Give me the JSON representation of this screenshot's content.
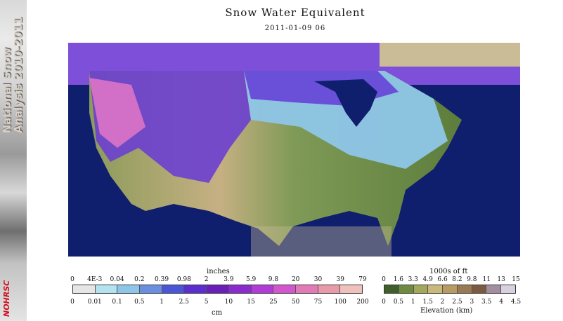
{
  "banner": {
    "text": "National Snow Analysis 2010-2011",
    "brand": "NOHRSC"
  },
  "header": {
    "title": "Snow Water Equivalent",
    "datetime": "2011-01-09 06"
  },
  "swe_legend": {
    "top_unit": "inches",
    "bottom_unit": "cm",
    "inches_labels": [
      "0",
      "4E-3",
      "0.04",
      "0.2",
      "0.39",
      "0.98",
      "2",
      "3.9",
      "5.9",
      "9.8",
      "20",
      "30",
      "39",
      "79"
    ],
    "cm_labels": [
      "0",
      "0.01",
      "0.1",
      "0.5",
      "1",
      "2.5",
      "5",
      "10",
      "15",
      "25",
      "50",
      "75",
      "100",
      "200"
    ],
    "colors": [
      "#e6e6e6",
      "#b4e3f0",
      "#8ec6e8",
      "#6a8ee0",
      "#4a55d8",
      "#5b2ed0",
      "#6a1fb8",
      "#8a2bd0",
      "#b23ad6",
      "#d257cf",
      "#e37ab8",
      "#e99aa8",
      "#efc0bc"
    ]
  },
  "elev_legend": {
    "top_unit": "1000s of ft",
    "bottom_unit": "Elevation (km)",
    "ft_labels": [
      "0",
      "1.6",
      "3.3",
      "4.9",
      "6.6",
      "8.2",
      "9.8",
      "11",
      "13",
      "15"
    ],
    "km_labels": [
      "0",
      "0.5",
      "1",
      "1.5",
      "2",
      "2.5",
      "3",
      "3.5",
      "4",
      "4.5"
    ],
    "colors": [
      "#3e5f2a",
      "#6f8c3e",
      "#a3a95a",
      "#c9b97a",
      "#b99a62",
      "#9a7a52",
      "#7a5a40",
      "#a38ea0",
      "#d8cfe0"
    ]
  }
}
